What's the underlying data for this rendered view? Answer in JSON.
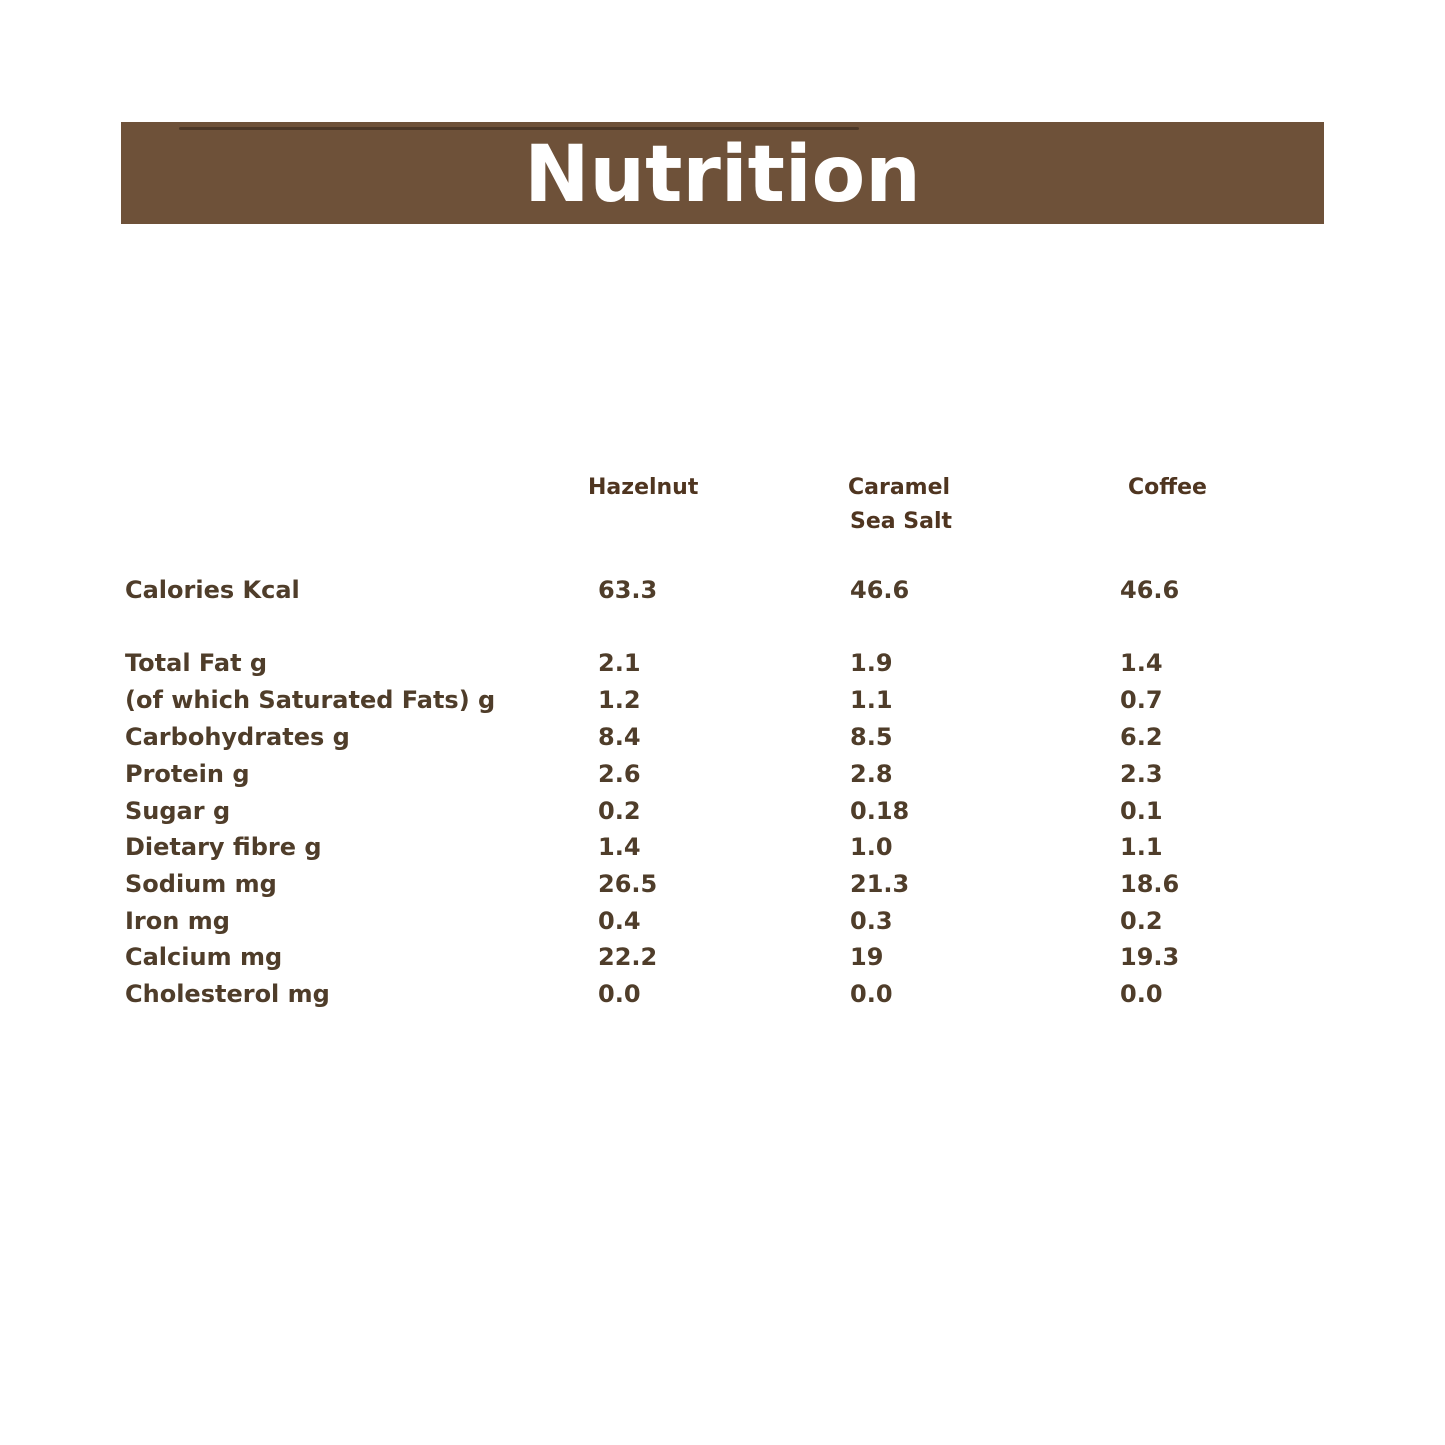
{
  "header": {
    "title": "Nutrition"
  },
  "table": {
    "columns": [
      {
        "line1": "Hazelnut",
        "line2": ""
      },
      {
        "line1": "Caramel",
        "line2": "Sea Salt"
      },
      {
        "line1": "Coffee",
        "line2": ""
      }
    ],
    "rows": [
      {
        "label": "Calories Kcal",
        "values": [
          "63.3",
          "46.6",
          "46.6"
        ]
      },
      {
        "label": "Total Fat g",
        "values": [
          "2.1",
          "1.9",
          "1.4"
        ]
      },
      {
        "label": "(of which Saturated Fats) g",
        "values": [
          "1.2",
          "1.1",
          "0.7"
        ]
      },
      {
        "label": "Carbohydrates g",
        "values": [
          "8.4",
          "8.5",
          "6.2"
        ]
      },
      {
        "label": "Protein g",
        "values": [
          "2.6",
          "2.8",
          "2.3"
        ]
      },
      {
        "label": "Sugar g",
        "values": [
          "0.2",
          "0.18",
          "0.1"
        ]
      },
      {
        "label": "Dietary fibre g",
        "values": [
          "1.4",
          "1.0",
          "1.1"
        ]
      },
      {
        "label": "Sodium mg",
        "values": [
          "26.5",
          "21.3",
          "18.6"
        ]
      },
      {
        "label": "Iron mg",
        "values": [
          "0.4",
          "0.3",
          "0.2"
        ]
      },
      {
        "label": "Calcium mg",
        "values": [
          "22.2",
          "19",
          "19.3"
        ]
      },
      {
        "label": "Cholesterol mg",
        "values": [
          "0.0",
          "0.0",
          "0.0"
        ]
      }
    ]
  },
  "colors": {
    "banner": "#6e5139",
    "banner_line": "#4c3727",
    "header_text": "#4f3520",
    "body_text": "#4f3d2a",
    "title_text": "#ffffff"
  }
}
